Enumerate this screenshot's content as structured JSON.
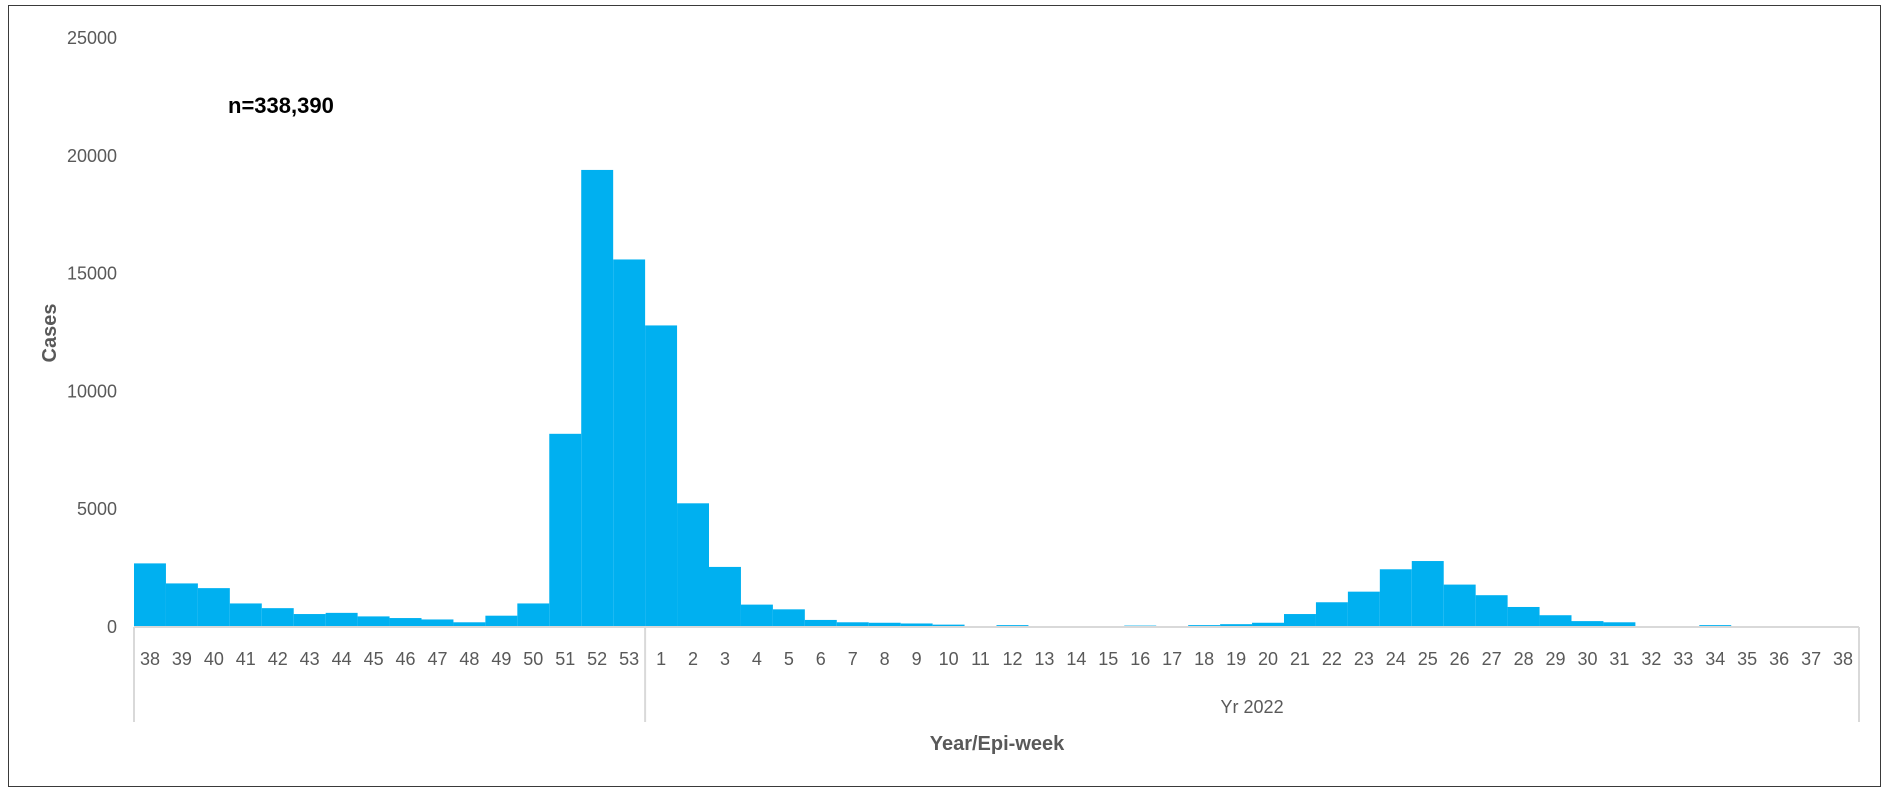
{
  "chart_data": {
    "type": "bar",
    "ylabel": "Cases",
    "xlabel": "Year/Epi-week",
    "annotation": "n=338,390",
    "ylim": [
      0,
      25000
    ],
    "y_ticks": [
      "0",
      "5000",
      "10000",
      "15000",
      "20000",
      "25000"
    ],
    "grid": false,
    "color": "#00B0F0",
    "groups": [
      {
        "label": "",
        "span": 16
      },
      {
        "label": "Yr 2022",
        "span": 38
      }
    ],
    "categories": [
      "38",
      "39",
      "40",
      "41",
      "42",
      "43",
      "44",
      "45",
      "46",
      "47",
      "48",
      "49",
      "50",
      "51",
      "52",
      "53",
      "1",
      "2",
      "3",
      "4",
      "5",
      "6",
      "7",
      "8",
      "9",
      "10",
      "11",
      "12",
      "13",
      "14",
      "15",
      "16",
      "17",
      "18",
      "19",
      "20",
      "21",
      "22",
      "23",
      "24",
      "25",
      "26",
      "27",
      "28",
      "29",
      "30",
      "31",
      "32",
      "33",
      "34",
      "35",
      "36",
      "37",
      "38"
    ],
    "values": [
      2700,
      1850,
      1650,
      1000,
      800,
      550,
      600,
      450,
      380,
      320,
      200,
      480,
      1000,
      8200,
      19400,
      15600,
      12800,
      5250,
      2550,
      950,
      750,
      300,
      200,
      180,
      150,
      100,
      20,
      80,
      10,
      10,
      10,
      60,
      10,
      80,
      120,
      180,
      550,
      1050,
      1500,
      2450,
      2800,
      1800,
      1350,
      850,
      500,
      250,
      200,
      10,
      10,
      80,
      10,
      10,
      10,
      10
    ]
  }
}
